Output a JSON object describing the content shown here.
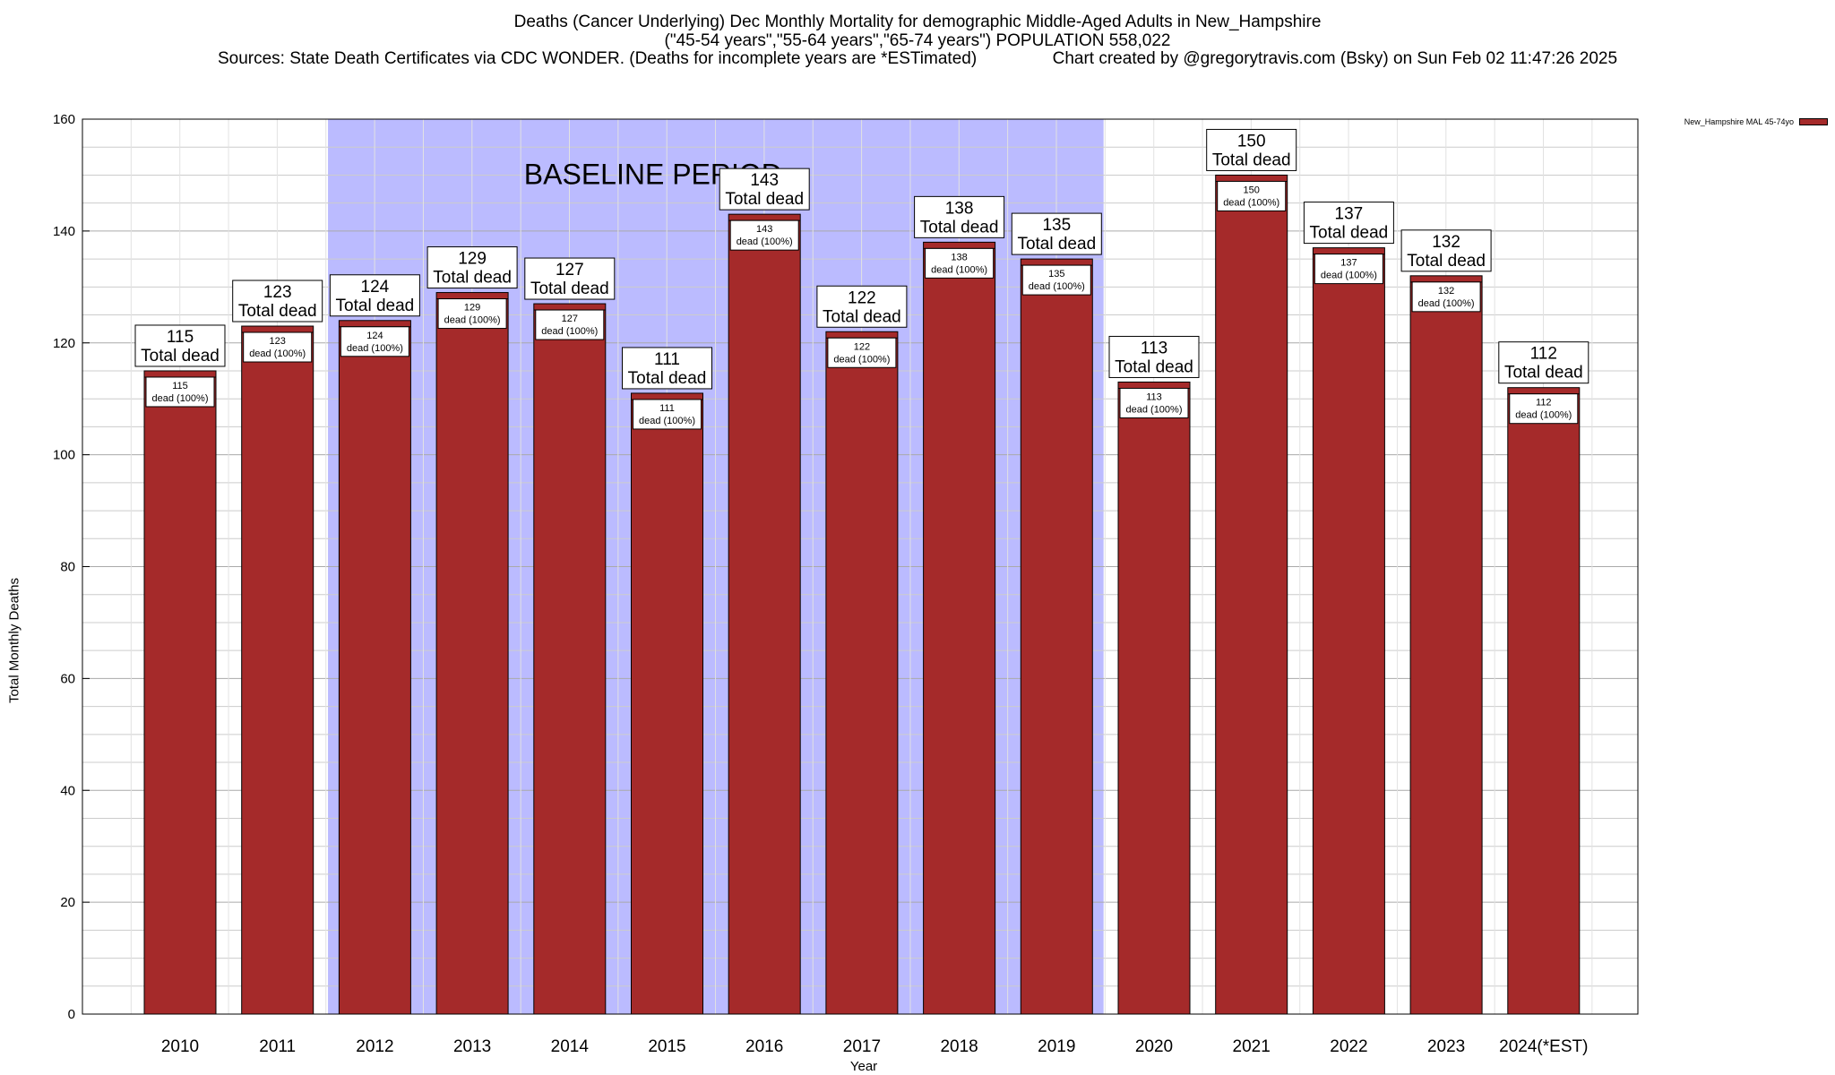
{
  "title": {
    "line1": "Deaths (Cancer Underlying) Dec Monthly Mortality for demographic Middle-Aged Adults in New_Hampshire",
    "line2": "(\"45-54 years\",\"55-64 years\",\"65-74 years\") POPULATION 558,022",
    "line3": "Sources: State Death Certificates via CDC WONDER. (Deaths for incomplete years are *ESTimated)                Chart created by @gregorytravis.com (Bsky) on Sun Feb 02 11:47:26 2025"
  },
  "chart_data": {
    "type": "bar",
    "categories": [
      "2010",
      "2011",
      "2012",
      "2013",
      "2014",
      "2015",
      "2016",
      "2017",
      "2018",
      "2019",
      "2020",
      "2021",
      "2022",
      "2023",
      "2024(*EST)"
    ],
    "series": [
      {
        "name": "New_Hampshire MAL 45-74yo",
        "values": [
          115,
          123,
          124,
          129,
          127,
          111,
          143,
          122,
          138,
          135,
          113,
          150,
          137,
          132,
          112
        ],
        "color": "#a52a2a"
      }
    ],
    "xlabel": "Year",
    "ylabel": "Total Monthly Deaths",
    "ylim": [
      0,
      160
    ],
    "yticks": [
      0,
      20,
      40,
      60,
      80,
      100,
      120,
      140,
      160
    ],
    "grid": true,
    "legend_position": "top-right",
    "bar_label_suffix": "Total dead",
    "inner_label_suffix": "dead (100%)",
    "baseline": {
      "label": "BASELINE PERIOD",
      "from": "2012",
      "to": "2019",
      "color": "#bbbbff"
    }
  }
}
